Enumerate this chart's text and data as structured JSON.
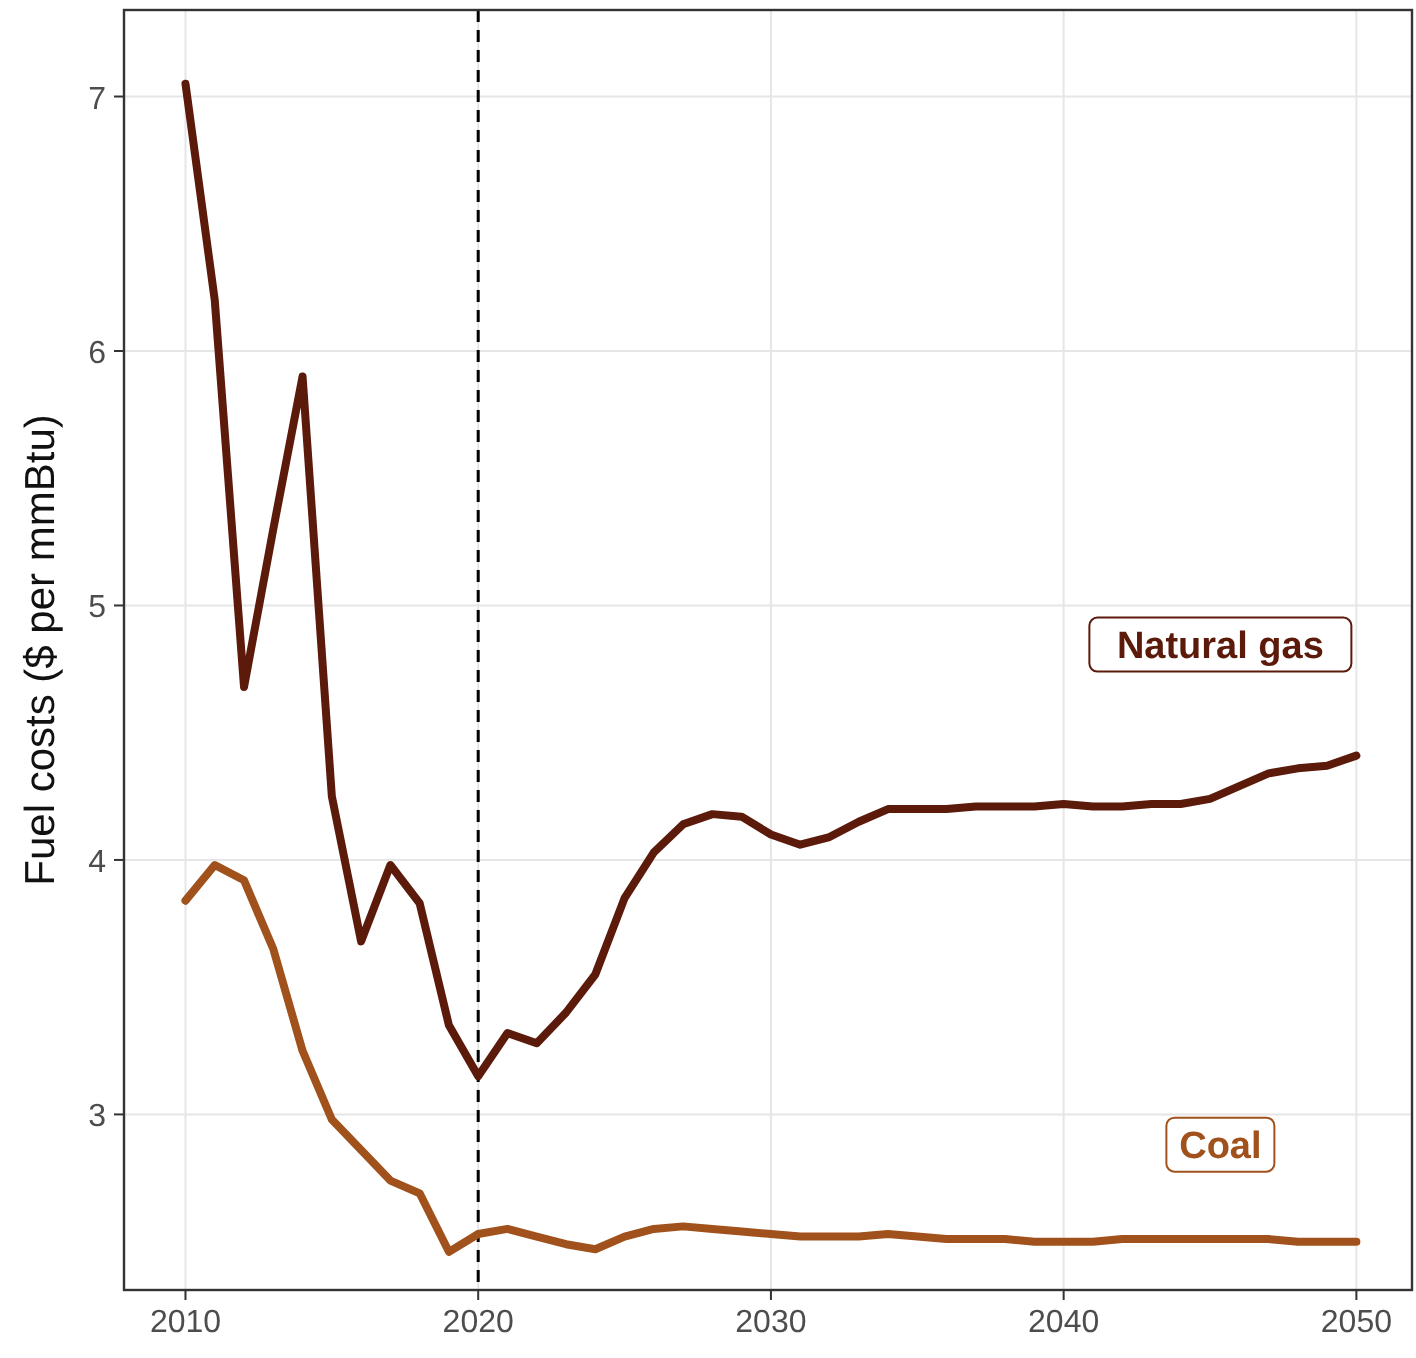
{
  "chart_data": {
    "type": "line",
    "ylabel": "Fuel costs ($ per mmBtu)",
    "x": [
      2010,
      2011,
      2012,
      2013,
      2014,
      2015,
      2016,
      2017,
      2018,
      2019,
      2020,
      2021,
      2022,
      2023,
      2024,
      2025,
      2026,
      2027,
      2028,
      2029,
      2030,
      2031,
      2032,
      2033,
      2034,
      2035,
      2036,
      2037,
      2038,
      2039,
      2040,
      2041,
      2042,
      2043,
      2044,
      2045,
      2046,
      2047,
      2048,
      2049,
      2050
    ],
    "series": [
      {
        "name": "Natural gas",
        "color": "#5c1a0b",
        "values": [
          7.05,
          6.2,
          4.68,
          5.3,
          5.9,
          4.25,
          3.68,
          3.98,
          3.83,
          3.35,
          3.15,
          3.32,
          3.28,
          3.4,
          3.55,
          3.85,
          4.03,
          4.14,
          4.18,
          4.17,
          4.1,
          4.06,
          4.09,
          4.15,
          4.2,
          4.2,
          4.2,
          4.21,
          4.21,
          4.21,
          4.22,
          4.21,
          4.21,
          4.22,
          4.22,
          4.24,
          4.29,
          4.34,
          4.36,
          4.37,
          4.41
        ]
      },
      {
        "name": "Coal",
        "color": "#a0511c",
        "values": [
          3.84,
          3.98,
          3.92,
          3.65,
          3.25,
          2.98,
          2.86,
          2.74,
          2.69,
          2.46,
          2.53,
          2.55,
          2.52,
          2.49,
          2.47,
          2.52,
          2.55,
          2.56,
          2.55,
          2.54,
          2.53,
          2.52,
          2.52,
          2.52,
          2.53,
          2.52,
          2.51,
          2.51,
          2.51,
          2.5,
          2.5,
          2.5,
          2.51,
          2.51,
          2.51,
          2.51,
          2.51,
          2.51,
          2.5,
          2.5,
          2.5
        ]
      }
    ],
    "xlim": [
      2007.9,
      2051.9
    ],
    "xticks": [
      2010,
      2020,
      2030,
      2040,
      2050
    ],
    "ylim": [
      2.31,
      7.34
    ],
    "yticks": [
      3,
      4,
      5,
      6,
      7
    ],
    "ref_lines": [
      {
        "axis": "x",
        "value": 2020,
        "color": "#000000",
        "line_style": "dashed"
      }
    ],
    "grid": true,
    "line_style": "solid",
    "marker": "none"
  }
}
